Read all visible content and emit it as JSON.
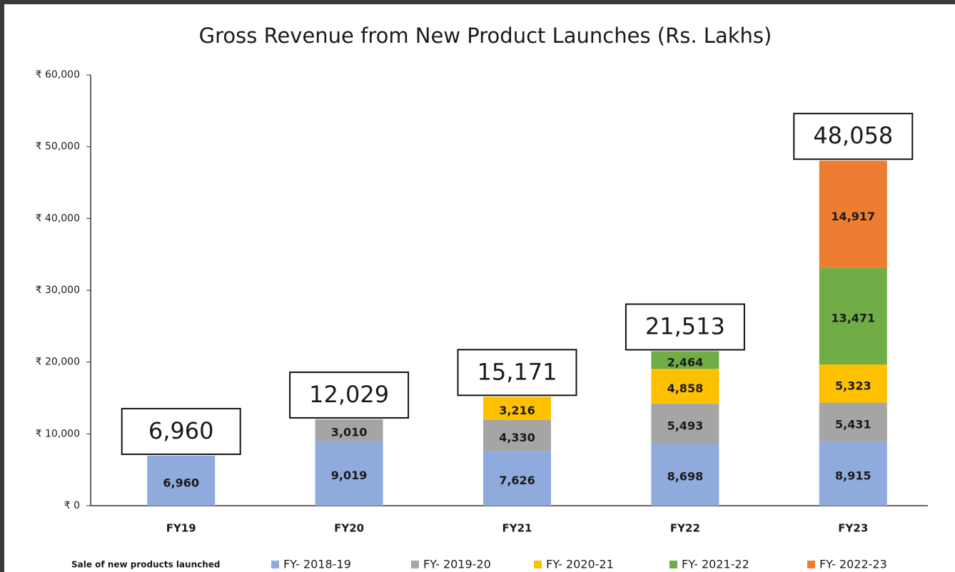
{
  "chart_data": {
    "type": "stacked_bar",
    "title": "Gross Revenue from New Product Launches (Rs. Lakhs)",
    "categories": [
      "FY19",
      "FY20",
      "FY21",
      "FY22",
      "FY23"
    ],
    "series": [
      {
        "name": "FY- 2018-19",
        "color": "#8faadc",
        "values": [
          6960,
          9019,
          7626,
          8698,
          8915
        ],
        "value_labels": [
          "6,960",
          "9,019",
          "7,626",
          "8,698",
          "8,915"
        ]
      },
      {
        "name": "FY- 2019-20",
        "color": "#a5a5a5",
        "values": [
          null,
          3010,
          4330,
          5493,
          5431
        ],
        "value_labels": [
          null,
          "3,010",
          "4,330",
          "5,493",
          "5,431"
        ]
      },
      {
        "name": "FY- 2020-21",
        "color": "#ffc000",
        "values": [
          null,
          null,
          3216,
          4858,
          5323
        ],
        "value_labels": [
          null,
          null,
          "3,216",
          "4,858",
          "5,323"
        ]
      },
      {
        "name": "FY- 2021-22",
        "color": "#70ad47",
        "values": [
          null,
          null,
          null,
          2464,
          13471
        ],
        "value_labels": [
          null,
          null,
          null,
          "2,464",
          "13,471"
        ]
      },
      {
        "name": "FY- 2022-23",
        "color": "#ed7d31",
        "values": [
          null,
          null,
          null,
          null,
          14917
        ],
        "value_labels": [
          null,
          null,
          null,
          null,
          "14,917"
        ]
      }
    ],
    "totals": [
      6960,
      12029,
      15171,
      21513,
      48058
    ],
    "total_labels": [
      "6,960",
      "12,029",
      "15,171",
      "21,513",
      "48,058"
    ],
    "legend_title": "Sale of new products launched",
    "ylim": [
      0,
      60000
    ],
    "yticks": [
      {
        "value": 0,
        "label": "₹ 0"
      },
      {
        "value": 10000,
        "label": "₹ 10,000"
      },
      {
        "value": 20000,
        "label": "₹ 20,000"
      },
      {
        "value": 30000,
        "label": "₹ 30,000"
      },
      {
        "value": 40000,
        "label": "₹ 40,000"
      },
      {
        "value": 50000,
        "label": "₹ 50,000"
      },
      {
        "value": 60000,
        "label": "₹ 60,000"
      }
    ],
    "grid": false,
    "legend": "bottom"
  }
}
